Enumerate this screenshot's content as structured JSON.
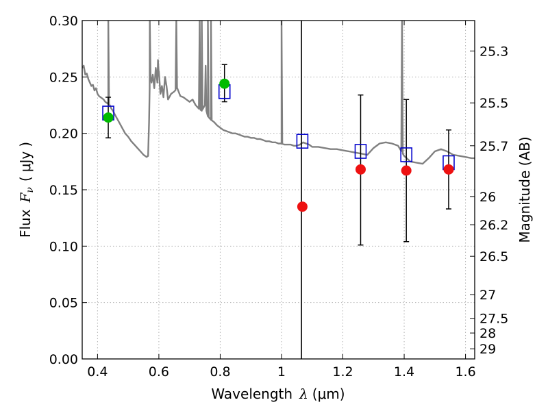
{
  "chart_data": {
    "type": "scatter",
    "xlabel": "Wavelength",
    "xlabel_symbol": "λ",
    "xlabel_unit": "(μm)",
    "ylabel": "Flux",
    "ylabel_symbol": "F",
    "ylabel_subscript": "ν",
    "ylabel_unit_open": "(",
    "ylabel_unit": "μJy",
    "ylabel_unit_close": ")",
    "y2label": "Magnitude (AB)",
    "xlim": [
      0.35,
      1.63
    ],
    "ylim": [
      0,
      0.3
    ],
    "grid": true,
    "x_ticks": [
      0.4,
      0.6,
      0.8,
      1.0,
      1.2,
      1.4,
      1.6
    ],
    "x_tick_labels": [
      "0.4",
      "0.6",
      "0.8",
      "1",
      "1.2",
      "1.4",
      "1.6"
    ],
    "y_ticks": [
      0.0,
      0.05,
      0.1,
      0.15,
      0.2,
      0.25,
      0.3
    ],
    "y_tick_labels": [
      "0.00",
      "0.05",
      "0.10",
      "0.15",
      "0.20",
      "0.25",
      "0.30"
    ],
    "y2_ticks": [
      {
        "flux": 0.273,
        "label": "25.3"
      },
      {
        "flux": 0.227,
        "label": "25.5"
      },
      {
        "flux": 0.189,
        "label": "25.7"
      },
      {
        "flux": 0.144,
        "label": "26"
      },
      {
        "flux": 0.119,
        "label": "26.2"
      },
      {
        "flux": 0.091,
        "label": "26.5"
      },
      {
        "flux": 0.057,
        "label": "27"
      },
      {
        "flux": 0.036,
        "label": "27.5"
      },
      {
        "flux": 0.023,
        "label": "28"
      },
      {
        "flux": 0.009,
        "label": "29"
      }
    ],
    "vertical_line_x": 1.065,
    "colors": {
      "sed": "#808080",
      "model": "#0000cc",
      "detected": "#00bb00",
      "observed": "#ee1111",
      "errorbar": "#000000",
      "grid": "#b0b0b0",
      "axes": "#000000"
    },
    "sed_model": [
      [
        0.35,
        0.258
      ],
      [
        0.355,
        0.26
      ],
      [
        0.36,
        0.252
      ],
      [
        0.365,
        0.253
      ],
      [
        0.37,
        0.248
      ],
      [
        0.375,
        0.245
      ],
      [
        0.38,
        0.242
      ],
      [
        0.385,
        0.243
      ],
      [
        0.39,
        0.238
      ],
      [
        0.395,
        0.24
      ],
      [
        0.4,
        0.235
      ],
      [
        0.405,
        0.233
      ],
      [
        0.41,
        0.232
      ],
      [
        0.415,
        0.231
      ],
      [
        0.42,
        0.23
      ],
      [
        0.425,
        0.228
      ],
      [
        0.43,
        0.227
      ],
      [
        0.435,
        0.226
      ],
      [
        0.44,
        0.225
      ],
      [
        0.445,
        0.222
      ],
      [
        0.45,
        0.22
      ],
      [
        0.46,
        0.215
      ],
      [
        0.47,
        0.21
      ],
      [
        0.48,
        0.205
      ],
      [
        0.49,
        0.2
      ],
      [
        0.5,
        0.197
      ],
      [
        0.51,
        0.193
      ],
      [
        0.52,
        0.19
      ],
      [
        0.53,
        0.187
      ],
      [
        0.54,
        0.184
      ],
      [
        0.55,
        0.181
      ],
      [
        0.56,
        0.179
      ],
      [
        0.565,
        0.18
      ],
      [
        0.568,
        0.21
      ],
      [
        0.57,
        0.24
      ],
      [
        0.573,
        0.25
      ],
      [
        0.576,
        0.245
      ],
      [
        0.58,
        0.252
      ],
      [
        0.585,
        0.24
      ],
      [
        0.59,
        0.258
      ],
      [
        0.595,
        0.245
      ],
      [
        0.6,
        0.255
      ],
      [
        0.605,
        0.235
      ],
      [
        0.61,
        0.242
      ],
      [
        0.615,
        0.232
      ],
      [
        0.62,
        0.25
      ],
      [
        0.625,
        0.242
      ],
      [
        0.63,
        0.23
      ],
      [
        0.64,
        0.235
      ],
      [
        0.65,
        0.237
      ],
      [
        0.66,
        0.24
      ],
      [
        0.67,
        0.233
      ],
      [
        0.68,
        0.232
      ],
      [
        0.69,
        0.23
      ],
      [
        0.7,
        0.228
      ],
      [
        0.71,
        0.23
      ],
      [
        0.72,
        0.225
      ],
      [
        0.73,
        0.222
      ],
      [
        0.74,
        0.22
      ],
      [
        0.75,
        0.225
      ],
      [
        0.76,
        0.215
      ],
      [
        0.77,
        0.212
      ],
      [
        0.78,
        0.21
      ],
      [
        0.79,
        0.207
      ],
      [
        0.8,
        0.205
      ],
      [
        0.81,
        0.203
      ],
      [
        0.82,
        0.202
      ],
      [
        0.83,
        0.201
      ],
      [
        0.84,
        0.2
      ],
      [
        0.85,
        0.2
      ],
      [
        0.86,
        0.199
      ],
      [
        0.87,
        0.198
      ],
      [
        0.88,
        0.197
      ],
      [
        0.89,
        0.197
      ],
      [
        0.9,
        0.196
      ],
      [
        0.91,
        0.196
      ],
      [
        0.92,
        0.195
      ],
      [
        0.93,
        0.195
      ],
      [
        0.94,
        0.194
      ],
      [
        0.95,
        0.193
      ],
      [
        0.96,
        0.193
      ],
      [
        0.97,
        0.192
      ],
      [
        0.98,
        0.192
      ],
      [
        0.99,
        0.191
      ],
      [
        1.0,
        0.191
      ],
      [
        1.01,
        0.19
      ],
      [
        1.02,
        0.19
      ],
      [
        1.03,
        0.19
      ],
      [
        1.04,
        0.189
      ],
      [
        1.05,
        0.189
      ],
      [
        1.06,
        0.19
      ],
      [
        1.07,
        0.192
      ],
      [
        1.08,
        0.191
      ],
      [
        1.09,
        0.19
      ],
      [
        1.1,
        0.188
      ],
      [
        1.12,
        0.188
      ],
      [
        1.14,
        0.187
      ],
      [
        1.16,
        0.186
      ],
      [
        1.18,
        0.186
      ],
      [
        1.2,
        0.185
      ],
      [
        1.22,
        0.184
      ],
      [
        1.24,
        0.183
      ],
      [
        1.26,
        0.182
      ],
      [
        1.28,
        0.181
      ],
      [
        1.3,
        0.187
      ],
      [
        1.32,
        0.191
      ],
      [
        1.34,
        0.192
      ],
      [
        1.36,
        0.191
      ],
      [
        1.38,
        0.189
      ],
      [
        1.4,
        0.18
      ],
      [
        1.42,
        0.175
      ],
      [
        1.44,
        0.174
      ],
      [
        1.46,
        0.173
      ],
      [
        1.48,
        0.178
      ],
      [
        1.5,
        0.184
      ],
      [
        1.52,
        0.186
      ],
      [
        1.54,
        0.184
      ],
      [
        1.56,
        0.181
      ],
      [
        1.58,
        0.18
      ],
      [
        1.6,
        0.179
      ],
      [
        1.62,
        0.178
      ],
      [
        1.63,
        0.178
      ]
    ],
    "sed_emission_lines": [
      {
        "x": 0.435,
        "peak": 0.3
      },
      {
        "x": 0.5705,
        "peak": 0.3
      },
      {
        "x": 0.657,
        "peak": 0.3
      },
      {
        "x": 0.733,
        "peak": 0.3
      },
      {
        "x": 0.74,
        "peak": 0.3
      },
      {
        "x": 0.76,
        "peak": 0.3
      },
      {
        "x": 0.77,
        "peak": 0.3
      },
      {
        "x": 1.0,
        "peak": 0.3
      },
      {
        "x": 1.393,
        "peak": 0.3
      },
      {
        "x": 0.7525,
        "peak": 0.26
      },
      {
        "x": 0.597,
        "peak": 0.265
      }
    ],
    "model_points": [
      {
        "x": 0.435,
        "y": 0.218
      },
      {
        "x": 0.814,
        "y": 0.237
      },
      {
        "x": 1.068,
        "y": 0.193
      },
      {
        "x": 1.258,
        "y": 0.184
      },
      {
        "x": 1.407,
        "y": 0.181
      },
      {
        "x": 1.545,
        "y": 0.174
      }
    ],
    "detected_points": [
      {
        "x": 0.435,
        "y": 0.214,
        "yerr_low": 0.018,
        "yerr_high": 0.018
      },
      {
        "x": 0.814,
        "y": 0.244,
        "yerr_low": 0.016,
        "yerr_high": 0.017
      }
    ],
    "observed_points": [
      {
        "x": 1.068,
        "y": 0.135
      },
      {
        "x": 1.258,
        "y": 0.168,
        "yerr_low": 0.067,
        "yerr_high": 0.066
      },
      {
        "x": 1.407,
        "y": 0.167,
        "yerr_low": 0.063,
        "yerr_high": 0.063
      },
      {
        "x": 1.545,
        "y": 0.168,
        "yerr_low": 0.035,
        "yerr_high": 0.035
      }
    ]
  }
}
